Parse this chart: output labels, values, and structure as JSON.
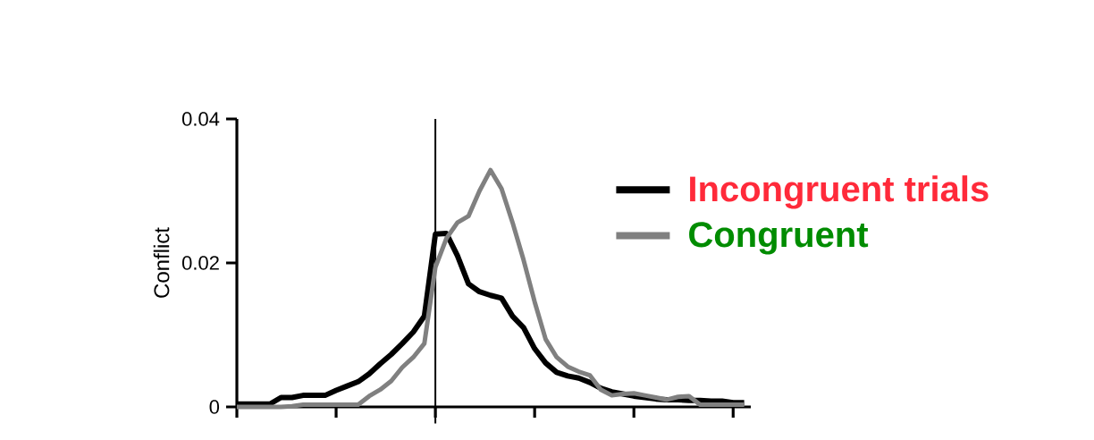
{
  "chart_data": {
    "type": "line",
    "ylabel": "Conflict",
    "categories": [
      null,
      null,
      null,
      null,
      null,
      null,
      null,
      null,
      null,
      null,
      null,
      null,
      null,
      null,
      null,
      null,
      null,
      null,
      null,
      null,
      null,
      null,
      null,
      null,
      null,
      null,
      null,
      null,
      null,
      null,
      null,
      null,
      null,
      null,
      null,
      null,
      null,
      null,
      null,
      null,
      null,
      null,
      null,
      null,
      null,
      null,
      null
    ],
    "series": [
      {
        "name": "Incongruent trials",
        "color": "#000000",
        "values": [
          0.0004,
          0.0004,
          0.0004,
          0.0004,
          0.0013,
          0.0013,
          0.0016,
          0.0016,
          0.0016,
          0.0023,
          0.0029,
          0.0035,
          0.0046,
          0.006,
          0.0073,
          0.0088,
          0.0104,
          0.0126,
          0.024,
          0.0241,
          0.021,
          0.0171,
          0.016,
          0.0155,
          0.0151,
          0.0126,
          0.011,
          0.0081,
          0.0061,
          0.0048,
          0.0043,
          0.004,
          0.0034,
          0.0026,
          0.0021,
          0.0018,
          0.0015,
          0.0013,
          0.0011,
          0.001,
          0.001,
          0.0009,
          0.0009,
          0.0008,
          0.0008,
          0.0006,
          0.0006
        ]
      },
      {
        "name": "Congruent",
        "color": "#808080",
        "values": [
          0,
          0,
          0,
          0,
          0,
          0.0001,
          0.0003,
          0.0003,
          0.0003,
          0.0003,
          0.0003,
          0.0003,
          0.0015,
          0.0024,
          0.0036,
          0.0055,
          0.0069,
          0.0088,
          0.0194,
          0.0234,
          0.0256,
          0.0265,
          0.03,
          0.0329,
          0.0303,
          0.0256,
          0.0204,
          0.0146,
          0.0094,
          0.0069,
          0.0056,
          0.0049,
          0.0044,
          0.0024,
          0.0016,
          0.0018,
          0.0019,
          0.0016,
          0.0013,
          0.001,
          0.0014,
          0.0015,
          0.0003,
          0.0003,
          0.0003,
          0.0003,
          0.0003
        ]
      }
    ],
    "ylim": [
      0,
      0.04
    ],
    "yticks": [
      0,
      0.02,
      0.04
    ],
    "tick_labels": "y",
    "legend": "top right",
    "line_style": "solid"
  }
}
